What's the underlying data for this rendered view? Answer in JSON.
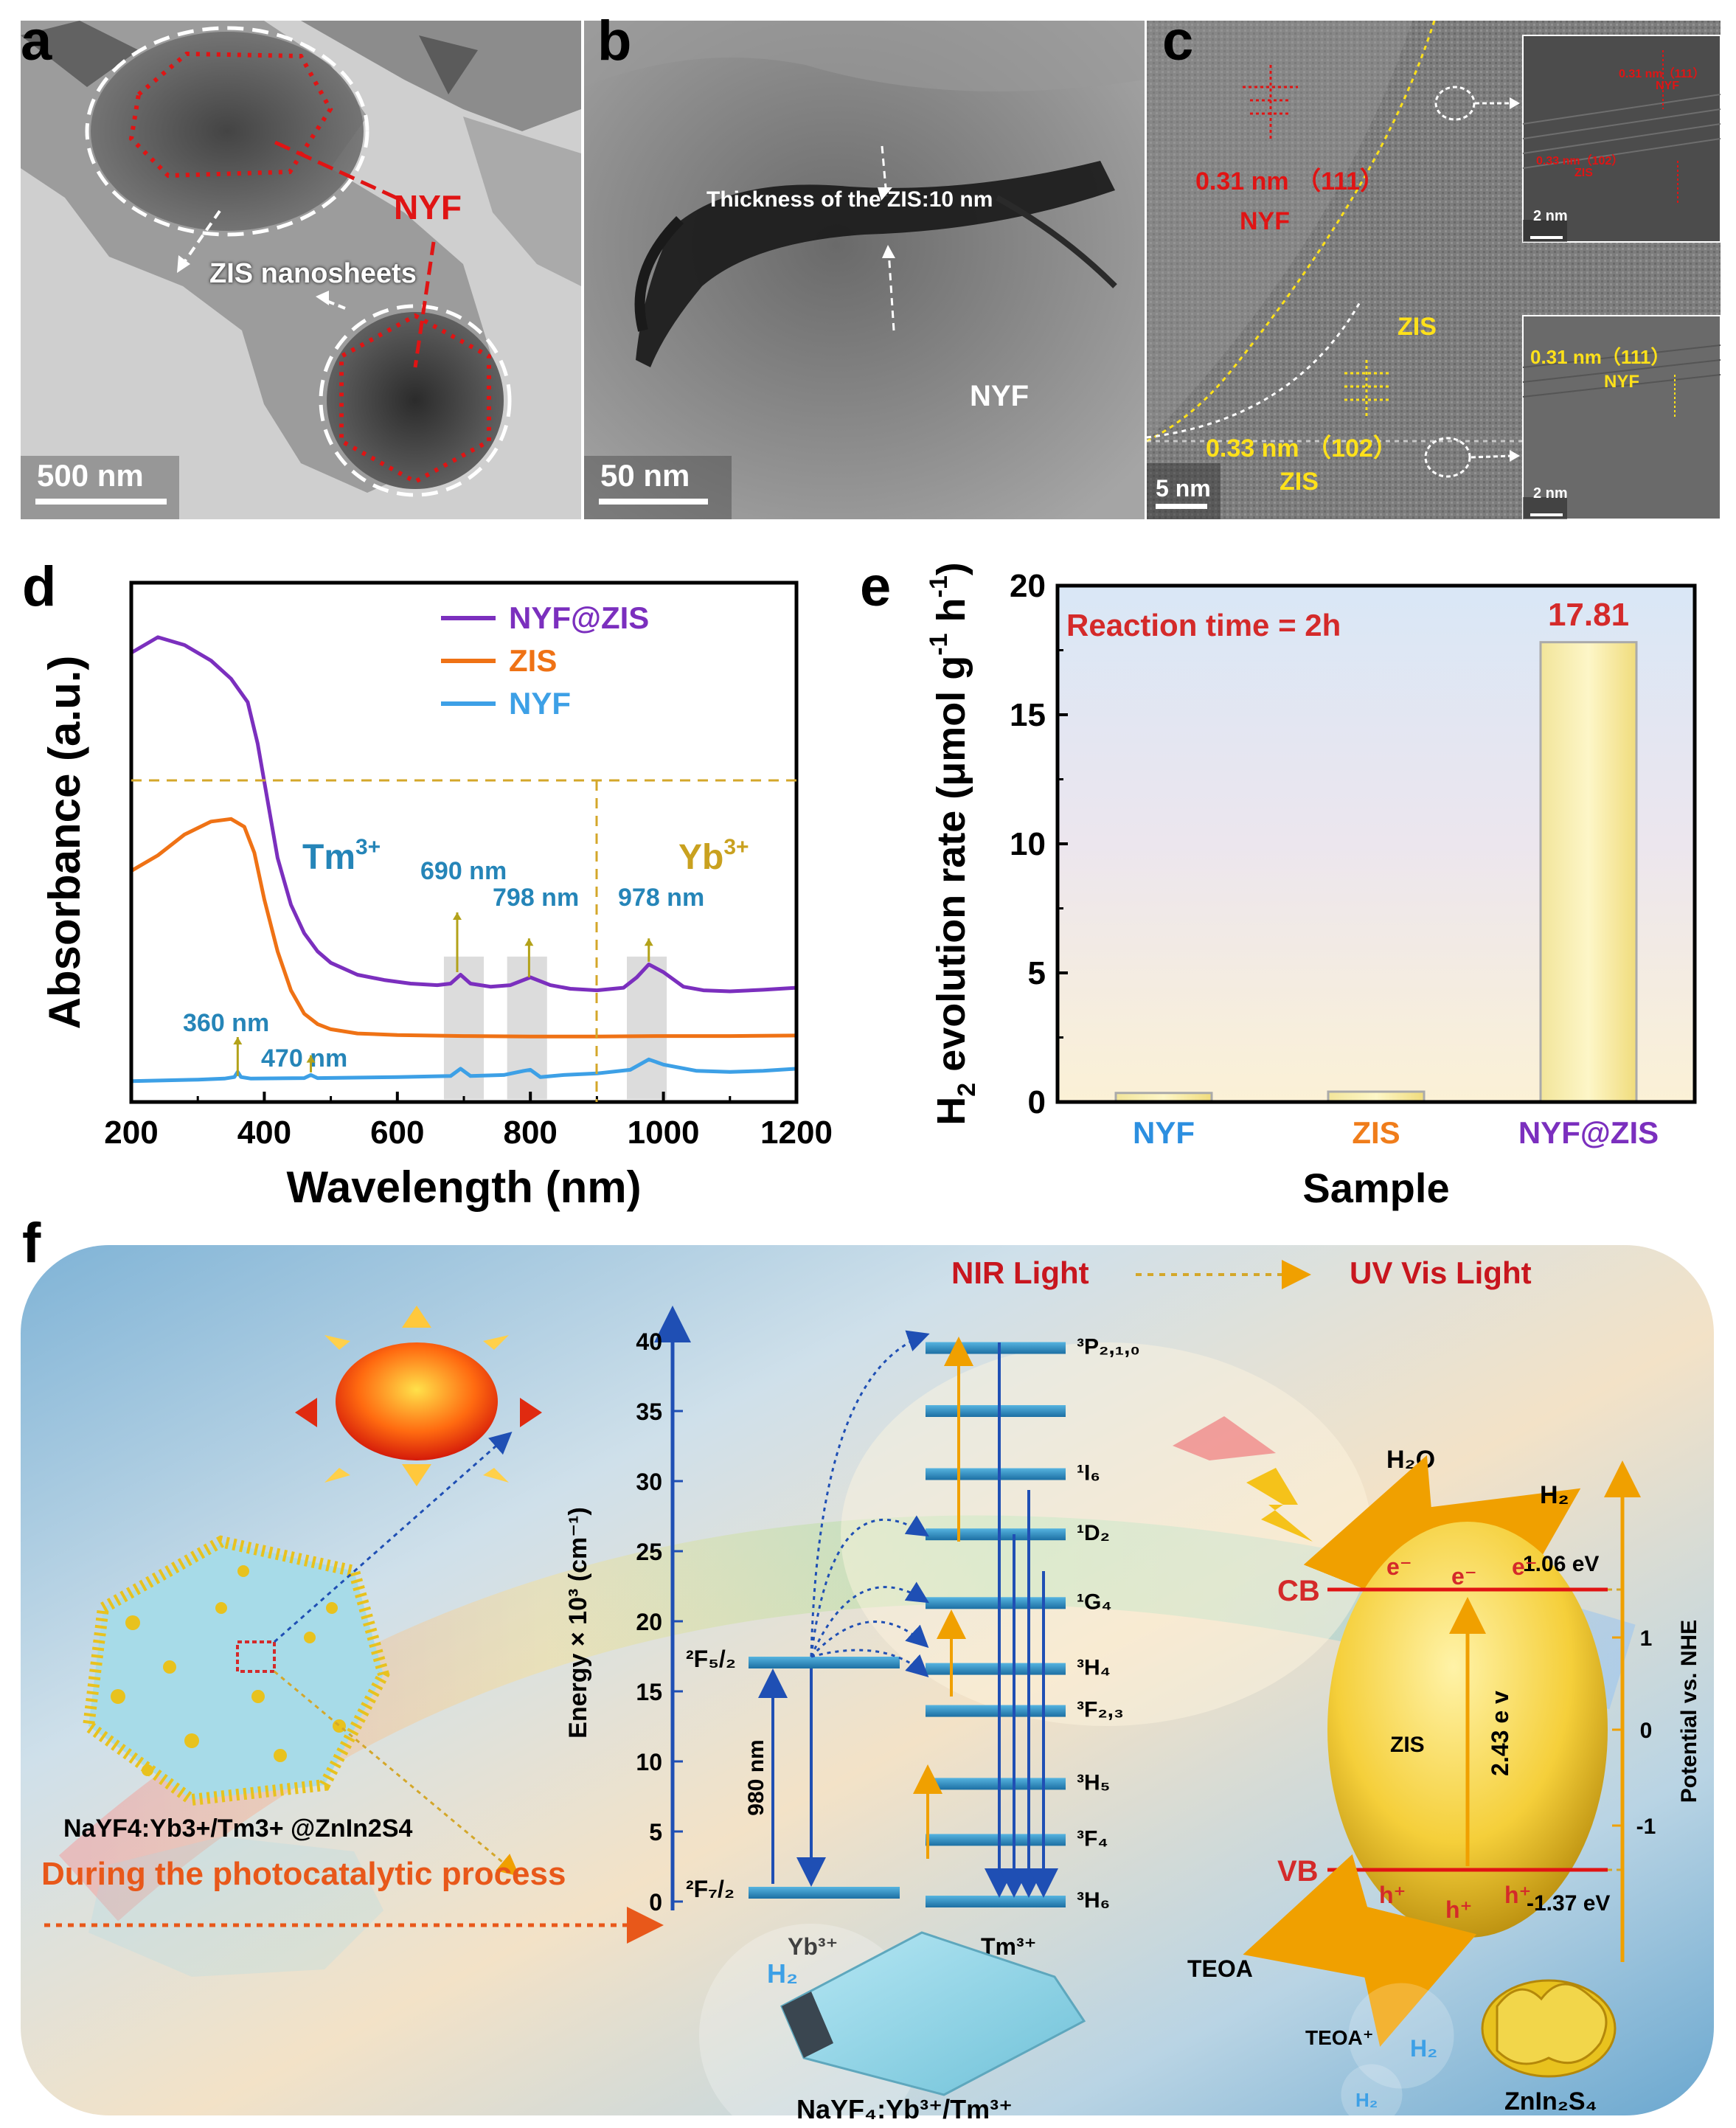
{
  "panel_a": {
    "label": "a",
    "scale_bar": "500 nm",
    "labels": {
      "nyf": "NYF",
      "zis": "ZIS nanosheets"
    }
  },
  "panel_b": {
    "label": "b",
    "scale_bar": "50 nm",
    "labels": {
      "thickness": "Thickness of the ZIS:10 nm",
      "nyf": "NYF"
    }
  },
  "panel_c": {
    "label": "c",
    "scale_bar": "5 nm",
    "inset_scale": "2 nm",
    "labels": {
      "nyf_d": "0.31 nm （111）",
      "nyf": "NYF",
      "zis_top": "ZIS",
      "zis_d": "0.33 nm （102）",
      "zis_bottom": "ZIS",
      "inset1_a": "0.31 nm（111）",
      "inset1_b": "NYF",
      "inset1_c": "0.33 nm（102）",
      "inset1_d": "ZIS",
      "inset2_a": "0.31 nm（111）",
      "inset2_b": "NYF"
    }
  },
  "panel_d": {
    "label": "d",
    "legend": [
      "NYF@ZIS",
      "ZIS",
      "NYF"
    ],
    "ions": {
      "tm": "Tm",
      "yb": "Yb",
      "sup": "3+"
    },
    "peaks": [
      "690 nm",
      "798 nm",
      "978 nm",
      "360 nm",
      "470 nm"
    ]
  },
  "panel_e": {
    "label": "e",
    "annotation": "Reaction time = 2h",
    "value_label": "17.81"
  },
  "chart_data": [
    {
      "type": "line",
      "title": "",
      "xlabel": "Wavelength (nm)",
      "ylabel": "Absorbance (a.u.)",
      "xlim": [
        200,
        1200
      ],
      "xticks": [
        200,
        400,
        600,
        800,
        1000,
        1200
      ],
      "yticks_visible": false,
      "series": [
        {
          "name": "NYF@ZIS",
          "color": "#7b2fbe",
          "x": [
            200,
            240,
            280,
            320,
            350,
            375,
            390,
            405,
            420,
            440,
            460,
            480,
            500,
            540,
            580,
            620,
            660,
            680,
            695,
            710,
            740,
            770,
            800,
            830,
            860,
            900,
            940,
            960,
            978,
            1000,
            1030,
            1060,
            1100,
            1150,
            1200
          ],
          "y": [
            0.865,
            0.895,
            0.88,
            0.85,
            0.815,
            0.77,
            0.69,
            0.58,
            0.47,
            0.38,
            0.325,
            0.29,
            0.268,
            0.245,
            0.235,
            0.228,
            0.225,
            0.228,
            0.245,
            0.228,
            0.222,
            0.225,
            0.24,
            0.225,
            0.218,
            0.215,
            0.22,
            0.24,
            0.265,
            0.25,
            0.222,
            0.215,
            0.213,
            0.216,
            0.22
          ]
        },
        {
          "name": "ZIS",
          "color": "#ef7215",
          "x": [
            200,
            240,
            280,
            320,
            350,
            370,
            385,
            400,
            420,
            440,
            460,
            480,
            500,
            540,
            600,
            700,
            800,
            900,
            1000,
            1100,
            1200
          ],
          "y": [
            0.445,
            0.475,
            0.515,
            0.54,
            0.545,
            0.53,
            0.48,
            0.39,
            0.29,
            0.215,
            0.17,
            0.15,
            0.14,
            0.132,
            0.129,
            0.127,
            0.126,
            0.126,
            0.127,
            0.127,
            0.128
          ]
        },
        {
          "name": "NYF",
          "color": "#3da0e6",
          "x": [
            200,
            300,
            340,
            355,
            360,
            365,
            380,
            460,
            470,
            480,
            600,
            680,
            695,
            710,
            760,
            790,
            800,
            815,
            850,
            900,
            950,
            978,
            1000,
            1050,
            1100,
            1150,
            1200
          ],
          "y": [
            0.04,
            0.043,
            0.045,
            0.048,
            0.058,
            0.048,
            0.045,
            0.046,
            0.052,
            0.046,
            0.048,
            0.05,
            0.064,
            0.05,
            0.052,
            0.06,
            0.062,
            0.048,
            0.052,
            0.055,
            0.062,
            0.082,
            0.072,
            0.06,
            0.058,
            0.06,
            0.064
          ]
        }
      ],
      "shaded_regions": [
        [
          670,
          730
        ],
        [
          765,
          825
        ],
        [
          945,
          1005
        ]
      ],
      "peak_markers": [
        360,
        470,
        690,
        798,
        978
      ]
    },
    {
      "type": "bar",
      "title": "",
      "xlabel": "Sample",
      "ylabel": "H2 evolution rate (μmol g-1 h-1)",
      "ylabel_parts": [
        "H",
        "2",
        " evolution rate (μmol g",
        "-1",
        " h",
        "-1",
        ")"
      ],
      "categories": [
        "NYF",
        "ZIS",
        "NYF@ZIS"
      ],
      "category_colors": [
        "#2c8fe0",
        "#f07d1b",
        "#7b2fbe"
      ],
      "values": [
        0.35,
        0.4,
        17.81
      ],
      "ylim": [
        0,
        20
      ],
      "yticks": [
        0,
        5,
        10,
        15,
        20
      ]
    }
  ],
  "panel_f": {
    "label": "f",
    "nir": "NIR Light",
    "uv": "UV Vis Light",
    "composite": "NaYF4:Yb3+/Tm3+ @ZnIn2S4",
    "process": "During the photocatalytic process",
    "energy_axis": "Energy × 10³ (cm⁻¹)",
    "energy_ticks": [
      "0",
      "5",
      "10",
      "15",
      "20",
      "25",
      "30",
      "35",
      "40"
    ],
    "excitation": "980 nm",
    "yb_levels": [
      "²F₅/₂",
      "²F₇/₂"
    ],
    "tm_levels": [
      "³P₂,₁,₀",
      "¹I₆",
      "¹D₂",
      "¹G₄",
      "³H₄",
      "³F₂,₃",
      "³H₅",
      "³F₄",
      "³H₆"
    ],
    "yb": "Yb³⁺",
    "tm": "Tm³⁺",
    "h2o": "H₂O",
    "h2": "H₂",
    "cb": "CB",
    "vb": "VB",
    "cb_energy": "1.06 eV",
    "vb_energy": "-1.37 eV",
    "zis": "ZIS",
    "gap": "2.43 e v",
    "electron": "e⁻",
    "hole": "h⁺",
    "teoa": "TEOA",
    "teoa_plus": "TEOA⁺",
    "potential_axis": "Potential vs. NHE",
    "potential_ticks": [
      "1",
      "0",
      "-1"
    ],
    "crystal": "NaYF₄:Yb³⁺/Tm³⁺",
    "znins": "ZnIn₂S₄"
  }
}
